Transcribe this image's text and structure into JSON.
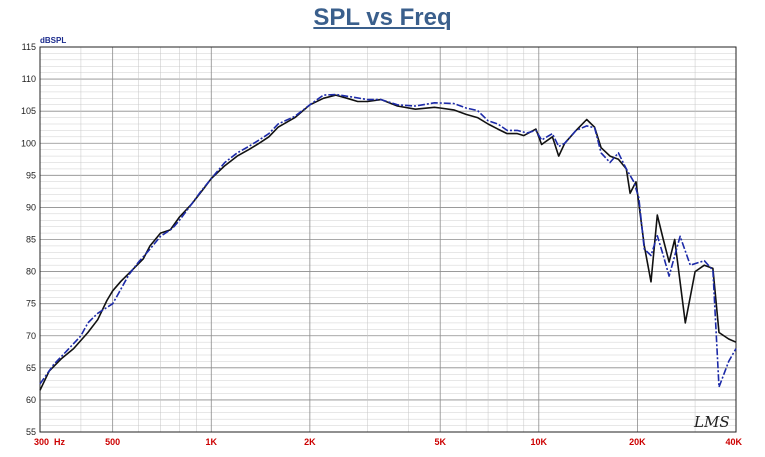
{
  "chart_data": {
    "type": "line",
    "title": "SPL vs Freq",
    "ylabel": "dBSPL",
    "xscale": "log",
    "xlim": [
      300,
      40000
    ],
    "ylim": [
      55,
      115
    ],
    "grid": true,
    "yticks": [
      55,
      60,
      65,
      70,
      75,
      80,
      85,
      90,
      95,
      100,
      105,
      110,
      115
    ],
    "xticks": [
      {
        "value": 300,
        "label": "300  Hz"
      },
      {
        "value": 500,
        "label": "500"
      },
      {
        "value": 1000,
        "label": "1K"
      },
      {
        "value": 2000,
        "label": "2K"
      },
      {
        "value": 5000,
        "label": "5K"
      },
      {
        "value": 10000,
        "label": "10K"
      },
      {
        "value": 20000,
        "label": "20K"
      },
      {
        "value": 40000,
        "label": "40K"
      }
    ],
    "watermark": "LMS",
    "series": [
      {
        "color": "#111111",
        "dashed": false,
        "points": [
          [
            300,
            61.5
          ],
          [
            320,
            64.5
          ],
          [
            350,
            66.5
          ],
          [
            380,
            68
          ],
          [
            420,
            70.5
          ],
          [
            450,
            72.5
          ],
          [
            480,
            75.5
          ],
          [
            500,
            77
          ],
          [
            530,
            78.5
          ],
          [
            580,
            80.5
          ],
          [
            620,
            82
          ],
          [
            650,
            84
          ],
          [
            700,
            86
          ],
          [
            750,
            86.5
          ],
          [
            800,
            88.5
          ],
          [
            870,
            90.5
          ],
          [
            950,
            93
          ],
          [
            1000,
            94.5
          ],
          [
            1100,
            96.5
          ],
          [
            1200,
            98
          ],
          [
            1300,
            99
          ],
          [
            1400,
            100
          ],
          [
            1500,
            101
          ],
          [
            1600,
            102.5
          ],
          [
            1800,
            104
          ],
          [
            2000,
            106
          ],
          [
            2200,
            107
          ],
          [
            2400,
            107.5
          ],
          [
            2600,
            107
          ],
          [
            2800,
            106.5
          ],
          [
            3000,
            106.5
          ],
          [
            3300,
            106.8
          ],
          [
            3700,
            105.8
          ],
          [
            4200,
            105.3
          ],
          [
            4800,
            105.6
          ],
          [
            5000,
            105.5
          ],
          [
            5500,
            105.2
          ],
          [
            6000,
            104.5
          ],
          [
            6500,
            104
          ],
          [
            7000,
            103
          ],
          [
            7500,
            102.2
          ],
          [
            8000,
            101.5
          ],
          [
            8600,
            101.5
          ],
          [
            9000,
            101.2
          ],
          [
            9800,
            102.2
          ],
          [
            10200,
            99.8
          ],
          [
            11000,
            101
          ],
          [
            11500,
            98
          ],
          [
            12000,
            100
          ],
          [
            13000,
            102
          ],
          [
            14000,
            103.7
          ],
          [
            14800,
            102.5
          ],
          [
            15500,
            99.3
          ],
          [
            16500,
            98
          ],
          [
            17500,
            97.5
          ],
          [
            18500,
            96
          ],
          [
            19000,
            92.2
          ],
          [
            19800,
            94
          ],
          [
            21000,
            84
          ],
          [
            22000,
            78.4
          ],
          [
            23000,
            88.8
          ],
          [
            24000,
            85
          ],
          [
            25000,
            81.5
          ],
          [
            26000,
            85
          ],
          [
            28000,
            72
          ],
          [
            30000,
            80
          ],
          [
            32000,
            81
          ],
          [
            34000,
            80.5
          ],
          [
            35500,
            70.5
          ],
          [
            38000,
            69.5
          ],
          [
            40000,
            69
          ]
        ]
      },
      {
        "color": "#1c2aa8",
        "dashed": true,
        "points": [
          [
            300,
            62.5
          ],
          [
            330,
            65.5
          ],
          [
            360,
            67.5
          ],
          [
            400,
            70
          ],
          [
            420,
            72
          ],
          [
            450,
            73.5
          ],
          [
            500,
            75
          ],
          [
            520,
            76.5
          ],
          [
            560,
            79.5
          ],
          [
            600,
            81.5
          ],
          [
            650,
            83.5
          ],
          [
            700,
            85.5
          ],
          [
            760,
            86.7
          ],
          [
            800,
            88
          ],
          [
            870,
            90.5
          ],
          [
            930,
            92.5
          ],
          [
            1000,
            94.5
          ],
          [
            1100,
            97
          ],
          [
            1200,
            98.5
          ],
          [
            1300,
            99.5
          ],
          [
            1400,
            100.5
          ],
          [
            1500,
            101.5
          ],
          [
            1600,
            103
          ],
          [
            1800,
            104.2
          ],
          [
            2000,
            106
          ],
          [
            2200,
            107.5
          ],
          [
            2400,
            107.6
          ],
          [
            2700,
            107.2
          ],
          [
            3000,
            106.8
          ],
          [
            3300,
            106.8
          ],
          [
            3700,
            106
          ],
          [
            4200,
            105.8
          ],
          [
            4800,
            106.3
          ],
          [
            5500,
            106.2
          ],
          [
            6000,
            105.5
          ],
          [
            6500,
            105.1
          ],
          [
            7000,
            103.5
          ],
          [
            7500,
            103
          ],
          [
            8000,
            102
          ],
          [
            8600,
            102
          ],
          [
            9200,
            101.6
          ],
          [
            9800,
            102
          ],
          [
            10200,
            100.5
          ],
          [
            11000,
            101.5
          ],
          [
            11500,
            99.5
          ],
          [
            12000,
            100
          ],
          [
            13000,
            102
          ],
          [
            14000,
            102.7
          ],
          [
            14800,
            102.4
          ],
          [
            15500,
            98.5
          ],
          [
            16500,
            97
          ],
          [
            17500,
            98.5
          ],
          [
            18500,
            96
          ],
          [
            19500,
            94
          ],
          [
            20200,
            91.5
          ],
          [
            21000,
            83.5
          ],
          [
            22000,
            82.5
          ],
          [
            23000,
            85.6
          ],
          [
            24000,
            82.5
          ],
          [
            25000,
            79.3
          ],
          [
            27000,
            85.5
          ],
          [
            29000,
            81
          ],
          [
            32000,
            81.7
          ],
          [
            34000,
            80.2
          ],
          [
            35500,
            62
          ],
          [
            38000,
            66
          ],
          [
            40000,
            68
          ]
        ]
      }
    ]
  }
}
